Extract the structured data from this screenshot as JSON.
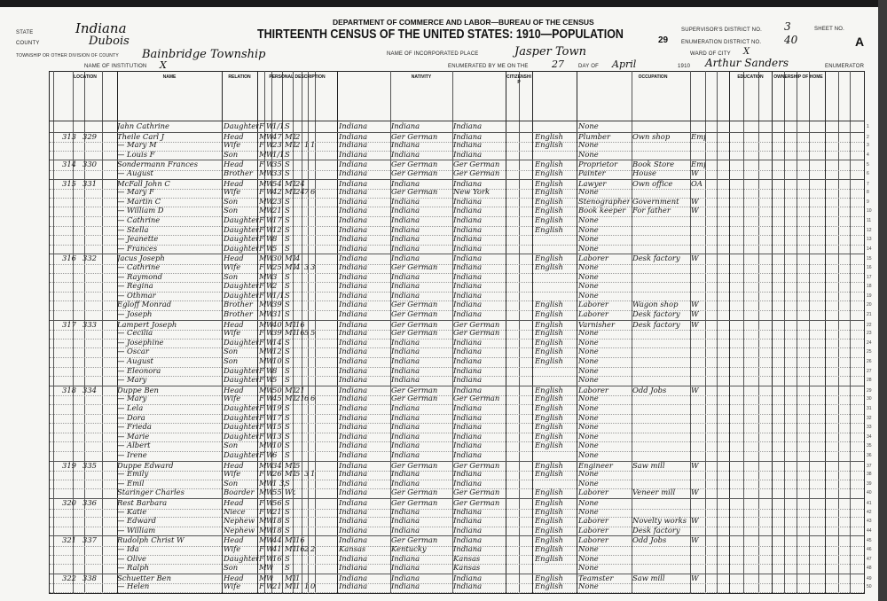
{
  "header": {
    "state_label": "State",
    "state": "Indiana",
    "county_label": "County",
    "county": "Dubois",
    "township_label": "Township or other division of county",
    "township": "Bainbridge Township",
    "institution_label": "Name of institution",
    "institution": "X",
    "department": "DEPARTMENT OF COMMERCE AND LABOR—BUREAU OF THE CENSUS",
    "title": "THIRTEENTH CENSUS OF THE UNITED STATES: 1910—POPULATION",
    "page_stamp": "29",
    "incorporated_label": "Name of incorporated place",
    "incorporated_place": "Jasper Town",
    "enumerated_label": "Enumerated by me on the",
    "day": "27",
    "day_of_label": "day of",
    "month": "April",
    "year": "1910",
    "enumerator": "Arthur Sanders",
    "enumerator_label": "Enumerator",
    "supervisor_label": "Supervisor's District No.",
    "supervisor_district": "3",
    "ed_label": "Enumeration District No.",
    "enumeration_district": "40",
    "ward_label": "Ward of city",
    "ward": "X",
    "sheet_label": "Sheet No.",
    "sheet": "A"
  },
  "column_groups": [
    "Location",
    "Name",
    "Relation",
    "Personal Description",
    "Nativity",
    "Citizenship",
    "Occupation",
    "Education",
    "Ownership of Home"
  ],
  "rows": [
    [
      "",
      "",
      "Jahn Cathrine",
      "Daughter",
      "F",
      "W",
      "1/12",
      "S",
      "",
      "",
      "",
      "Indiana",
      "Indiana",
      "Indiana",
      "",
      "None",
      "",
      ""
    ],
    [
      "313",
      "329",
      "Theile Carl J",
      "Head",
      "M",
      "W",
      "47",
      "M1",
      "2",
      "",
      "",
      "Indiana",
      "Ger German",
      "Indiana",
      "English",
      "Plumber",
      "Own shop",
      "Emp"
    ],
    [
      "",
      "",
      "— Mary M",
      "Wife",
      "F",
      "W",
      "23",
      "M1",
      "2",
      "1",
      "1",
      "Indiana",
      "Indiana",
      "Indiana",
      "English",
      "None",
      "",
      ""
    ],
    [
      "",
      "",
      "— Louis F",
      "Son",
      "M",
      "W",
      "1/12",
      "S",
      "",
      "",
      "",
      "Indiana",
      "Indiana",
      "Indiana",
      "",
      "None",
      "",
      ""
    ],
    [
      "314",
      "330",
      "Sondermann Frances",
      "Head",
      "F",
      "W",
      "35",
      "S",
      "",
      "",
      "",
      "Indiana",
      "Ger German",
      "Ger German",
      "English",
      "Proprietor",
      "Book Store",
      "Emp"
    ],
    [
      "",
      "",
      "— August",
      "Brother",
      "M",
      "W",
      "33",
      "S",
      "",
      "",
      "",
      "Indiana",
      "Ger German",
      "Ger German",
      "English",
      "Painter",
      "House",
      "W"
    ],
    [
      "315",
      "331",
      "McFall John C",
      "Head",
      "M",
      "W",
      "54",
      "M1",
      "24",
      "",
      "",
      "Indiana",
      "Indiana",
      "Indiana",
      "English",
      "Lawyer",
      "Own office",
      "OA"
    ],
    [
      "",
      "",
      "— Mary F",
      "Wife",
      "F",
      "W",
      "42",
      "M1",
      "24",
      "7",
      "6",
      "Indiana",
      "Ger German",
      "New York",
      "English",
      "None",
      "",
      ""
    ],
    [
      "",
      "",
      "— Martin C",
      "Son",
      "M",
      "W",
      "23",
      "S",
      "",
      "",
      "",
      "Indiana",
      "Indiana",
      "Indiana",
      "English",
      "Stenographer",
      "Government",
      "W"
    ],
    [
      "",
      "",
      "— William D",
      "Son",
      "M",
      "W",
      "21",
      "S",
      "",
      "",
      "",
      "Indiana",
      "Indiana",
      "Indiana",
      "English",
      "Book keeper",
      "For father",
      "W"
    ],
    [
      "",
      "",
      "— Cathrine",
      "Daughter",
      "F",
      "W",
      "17",
      "S",
      "",
      "",
      "",
      "Indiana",
      "Indiana",
      "Indiana",
      "English",
      "None",
      "",
      ""
    ],
    [
      "",
      "",
      "— Stella",
      "Daughter",
      "F",
      "W",
      "12",
      "S",
      "",
      "",
      "",
      "Indiana",
      "Indiana",
      "Indiana",
      "English",
      "None",
      "",
      ""
    ],
    [
      "",
      "",
      "— Jeanette",
      "Daughter",
      "F",
      "W",
      "8",
      "S",
      "",
      "",
      "",
      "Indiana",
      "Indiana",
      "Indiana",
      "",
      "None",
      "",
      ""
    ],
    [
      "",
      "",
      "— Frances",
      "Daughter",
      "F",
      "W",
      "5",
      "S",
      "",
      "",
      "",
      "Indiana",
      "Indiana",
      "Indiana",
      "",
      "None",
      "",
      ""
    ],
    [
      "316",
      "332",
      "Jacus Joseph",
      "Head",
      "M",
      "W",
      "30",
      "M1",
      "4",
      "",
      "",
      "Indiana",
      "Indiana",
      "Indiana",
      "English",
      "Laborer",
      "Desk factory",
      "W"
    ],
    [
      "",
      "",
      "— Cathrine",
      "Wife",
      "F",
      "W",
      "25",
      "M1",
      "4",
      "3",
      "3",
      "Indiana",
      "Ger German",
      "Indiana",
      "English",
      "None",
      "",
      ""
    ],
    [
      "",
      "",
      "— Raymond",
      "Son",
      "M",
      "W",
      "3",
      "S",
      "",
      "",
      "",
      "Indiana",
      "Indiana",
      "Indiana",
      "",
      "None",
      "",
      ""
    ],
    [
      "",
      "",
      "— Regina",
      "Daughter",
      "F",
      "W",
      "2",
      "S",
      "",
      "",
      "",
      "Indiana",
      "Indiana",
      "Indiana",
      "",
      "None",
      "",
      ""
    ],
    [
      "",
      "",
      "— Othmar",
      "Daughter",
      "F",
      "W",
      "1/12",
      "S",
      "",
      "",
      "",
      "Indiana",
      "Indiana",
      "Indiana",
      "",
      "None",
      "",
      ""
    ],
    [
      "",
      "",
      "Egloff Monrad",
      "Brother",
      "M",
      "W",
      "39",
      "S",
      "",
      "",
      "",
      "Indiana",
      "Ger German",
      "Indiana",
      "English",
      "Laborer",
      "Wagon shop",
      "W"
    ],
    [
      "",
      "",
      "— Joseph",
      "Brother",
      "M",
      "W",
      "31",
      "S",
      "",
      "",
      "",
      "Indiana",
      "Ger German",
      "Indiana",
      "English",
      "Laborer",
      "Desk factory",
      "W"
    ],
    [
      "317",
      "333",
      "Lampert Joseph",
      "Head",
      "M",
      "W",
      "40",
      "M1",
      "16",
      "",
      "",
      "Indiana",
      "Ger German",
      "Ger German",
      "English",
      "Varnisher",
      "Desk factory",
      "W"
    ],
    [
      "",
      "",
      "— Cecilia",
      "Wife",
      "F",
      "W",
      "39",
      "M1",
      "16",
      "5",
      "5",
      "Indiana",
      "Ger German",
      "Ger German",
      "English",
      "None",
      "",
      ""
    ],
    [
      "",
      "",
      "— Josephine",
      "Daughter",
      "F",
      "W",
      "14",
      "S",
      "",
      "",
      "",
      "Indiana",
      "Indiana",
      "Indiana",
      "English",
      "None",
      "",
      ""
    ],
    [
      "",
      "",
      "— Oscar",
      "Son",
      "M",
      "W",
      "12",
      "S",
      "",
      "",
      "",
      "Indiana",
      "Indiana",
      "Indiana",
      "English",
      "None",
      "",
      ""
    ],
    [
      "",
      "",
      "— August",
      "Son",
      "M",
      "W",
      "10",
      "S",
      "",
      "",
      "",
      "Indiana",
      "Indiana",
      "Indiana",
      "English",
      "None",
      "",
      ""
    ],
    [
      "",
      "",
      "— Eleonora",
      "Daughter",
      "F",
      "W",
      "8",
      "S",
      "",
      "",
      "",
      "Indiana",
      "Indiana",
      "Indiana",
      "",
      "None",
      "",
      ""
    ],
    [
      "",
      "",
      "— Mary",
      "Daughter",
      "F",
      "W",
      "5",
      "S",
      "",
      "",
      "",
      "Indiana",
      "Indiana",
      "Indiana",
      "",
      "None",
      "",
      ""
    ],
    [
      "318",
      "334",
      "Duppe Ben",
      "Head",
      "M",
      "W",
      "50",
      "M1",
      "21",
      "",
      "",
      "Indiana",
      "Ger German",
      "Indiana",
      "English",
      "Laborer",
      "Odd Jobs",
      "W"
    ],
    [
      "",
      "",
      "— Mary",
      "Wife",
      "F",
      "W",
      "45",
      "M1",
      "21",
      "6",
      "6",
      "Indiana",
      "Ger German",
      "Ger German",
      "English",
      "None",
      "",
      ""
    ],
    [
      "",
      "",
      "— Lela",
      "Daughter",
      "F",
      "W",
      "19",
      "S",
      "",
      "",
      "",
      "Indiana",
      "Indiana",
      "Indiana",
      "English",
      "None",
      "",
      ""
    ],
    [
      "",
      "",
      "— Dora",
      "Daughter",
      "F",
      "W",
      "17",
      "S",
      "",
      "",
      "",
      "Indiana",
      "Indiana",
      "Indiana",
      "English",
      "None",
      "",
      ""
    ],
    [
      "",
      "",
      "— Frieda",
      "Daughter",
      "F",
      "W",
      "15",
      "S",
      "",
      "",
      "",
      "Indiana",
      "Indiana",
      "Indiana",
      "English",
      "None",
      "",
      ""
    ],
    [
      "",
      "",
      "— Marie",
      "Daughter",
      "F",
      "W",
      "13",
      "S",
      "",
      "",
      "",
      "Indiana",
      "Indiana",
      "Indiana",
      "English",
      "None",
      "",
      ""
    ],
    [
      "",
      "",
      "— Albert",
      "Son",
      "M",
      "W",
      "10",
      "S",
      "",
      "",
      "",
      "Indiana",
      "Indiana",
      "Indiana",
      "English",
      "None",
      "",
      ""
    ],
    [
      "",
      "",
      "— Irene",
      "Daughter",
      "F",
      "W",
      "6",
      "S",
      "",
      "",
      "",
      "Indiana",
      "Indiana",
      "Indiana",
      "",
      "None",
      "",
      ""
    ],
    [
      "319",
      "335",
      "Duppe Edward",
      "Head",
      "M",
      "W",
      "34",
      "M1",
      "5",
      "",
      "",
      "Indiana",
      "Ger German",
      "Ger German",
      "English",
      "Engineer",
      "Saw mill",
      "W"
    ],
    [
      "",
      "",
      "— Emily",
      "Wife",
      "F",
      "W",
      "26",
      "M1",
      "5",
      "3",
      "1",
      "Indiana",
      "Indiana",
      "Indiana",
      "English",
      "None",
      "",
      ""
    ],
    [
      "",
      "",
      "— Emil",
      "Son",
      "M",
      "W",
      "1 3/12",
      "S",
      "",
      "",
      "",
      "Indiana",
      "Indiana",
      "Indiana",
      "",
      "None",
      "",
      ""
    ],
    [
      "",
      "",
      "Staringer Charles",
      "Boarder",
      "M",
      "W",
      "55",
      "Wd",
      "",
      "",
      "",
      "Indiana",
      "Ger German",
      "Ger German",
      "English",
      "Laborer",
      "Veneer mill",
      "W"
    ],
    [
      "320",
      "336",
      "Rest Barbara",
      "Head",
      "F",
      "W",
      "56",
      "S",
      "",
      "",
      "",
      "Indiana",
      "Ger German",
      "Ger German",
      "English",
      "None",
      "",
      ""
    ],
    [
      "",
      "",
      "— Katie",
      "Niece",
      "F",
      "W",
      "21",
      "S",
      "",
      "",
      "",
      "Indiana",
      "Indiana",
      "Indiana",
      "English",
      "None",
      "",
      ""
    ],
    [
      "",
      "",
      "— Edward",
      "Nephew",
      "M",
      "W",
      "18",
      "S",
      "",
      "",
      "",
      "Indiana",
      "Indiana",
      "Indiana",
      "English",
      "Laborer",
      "Novelty works",
      "W"
    ],
    [
      "",
      "",
      "— William",
      "Nephew",
      "M",
      "W",
      "18",
      "S",
      "",
      "",
      "",
      "Indiana",
      "Indiana",
      "Indiana",
      "English",
      "Laborer",
      "Desk factory",
      ""
    ],
    [
      "321",
      "337",
      "Rudolph Christ W",
      "Head",
      "M",
      "W",
      "44",
      "M1",
      "16",
      "",
      "",
      "Indiana",
      "Ger German",
      "Indiana",
      "English",
      "Laborer",
      "Odd Jobs",
      "W"
    ],
    [
      "",
      "",
      "— Ida",
      "Wife",
      "F",
      "W",
      "41",
      "M1",
      "16",
      "2",
      "2",
      "Kansas",
      "Kentucky",
      "Indiana",
      "English",
      "None",
      "",
      ""
    ],
    [
      "",
      "",
      "— Olive",
      "Daughter",
      "F",
      "W",
      "16",
      "S",
      "",
      "",
      "",
      "Indiana",
      "Indiana",
      "Kansas",
      "English",
      "None",
      "",
      ""
    ],
    [
      "",
      "",
      "— Ralph",
      "Son",
      "M",
      "W",
      "",
      "S",
      "",
      "",
      "",
      "Indiana",
      "Indiana",
      "Kansas",
      "",
      "None",
      "",
      ""
    ],
    [
      "322",
      "338",
      "Schuetter Ben",
      "Head",
      "M",
      "W",
      "",
      "M1",
      "1",
      "",
      "",
      "Indiana",
      "Indiana",
      "Indiana",
      "English",
      "Teamster",
      "Saw mill",
      "W"
    ],
    [
      "",
      "",
      "— Helen",
      "Wife",
      "F",
      "W",
      "21",
      "M1",
      "1",
      "1",
      "0",
      "Indiana",
      "Indiana",
      "Indiana",
      "English",
      "None",
      "",
      ""
    ]
  ]
}
